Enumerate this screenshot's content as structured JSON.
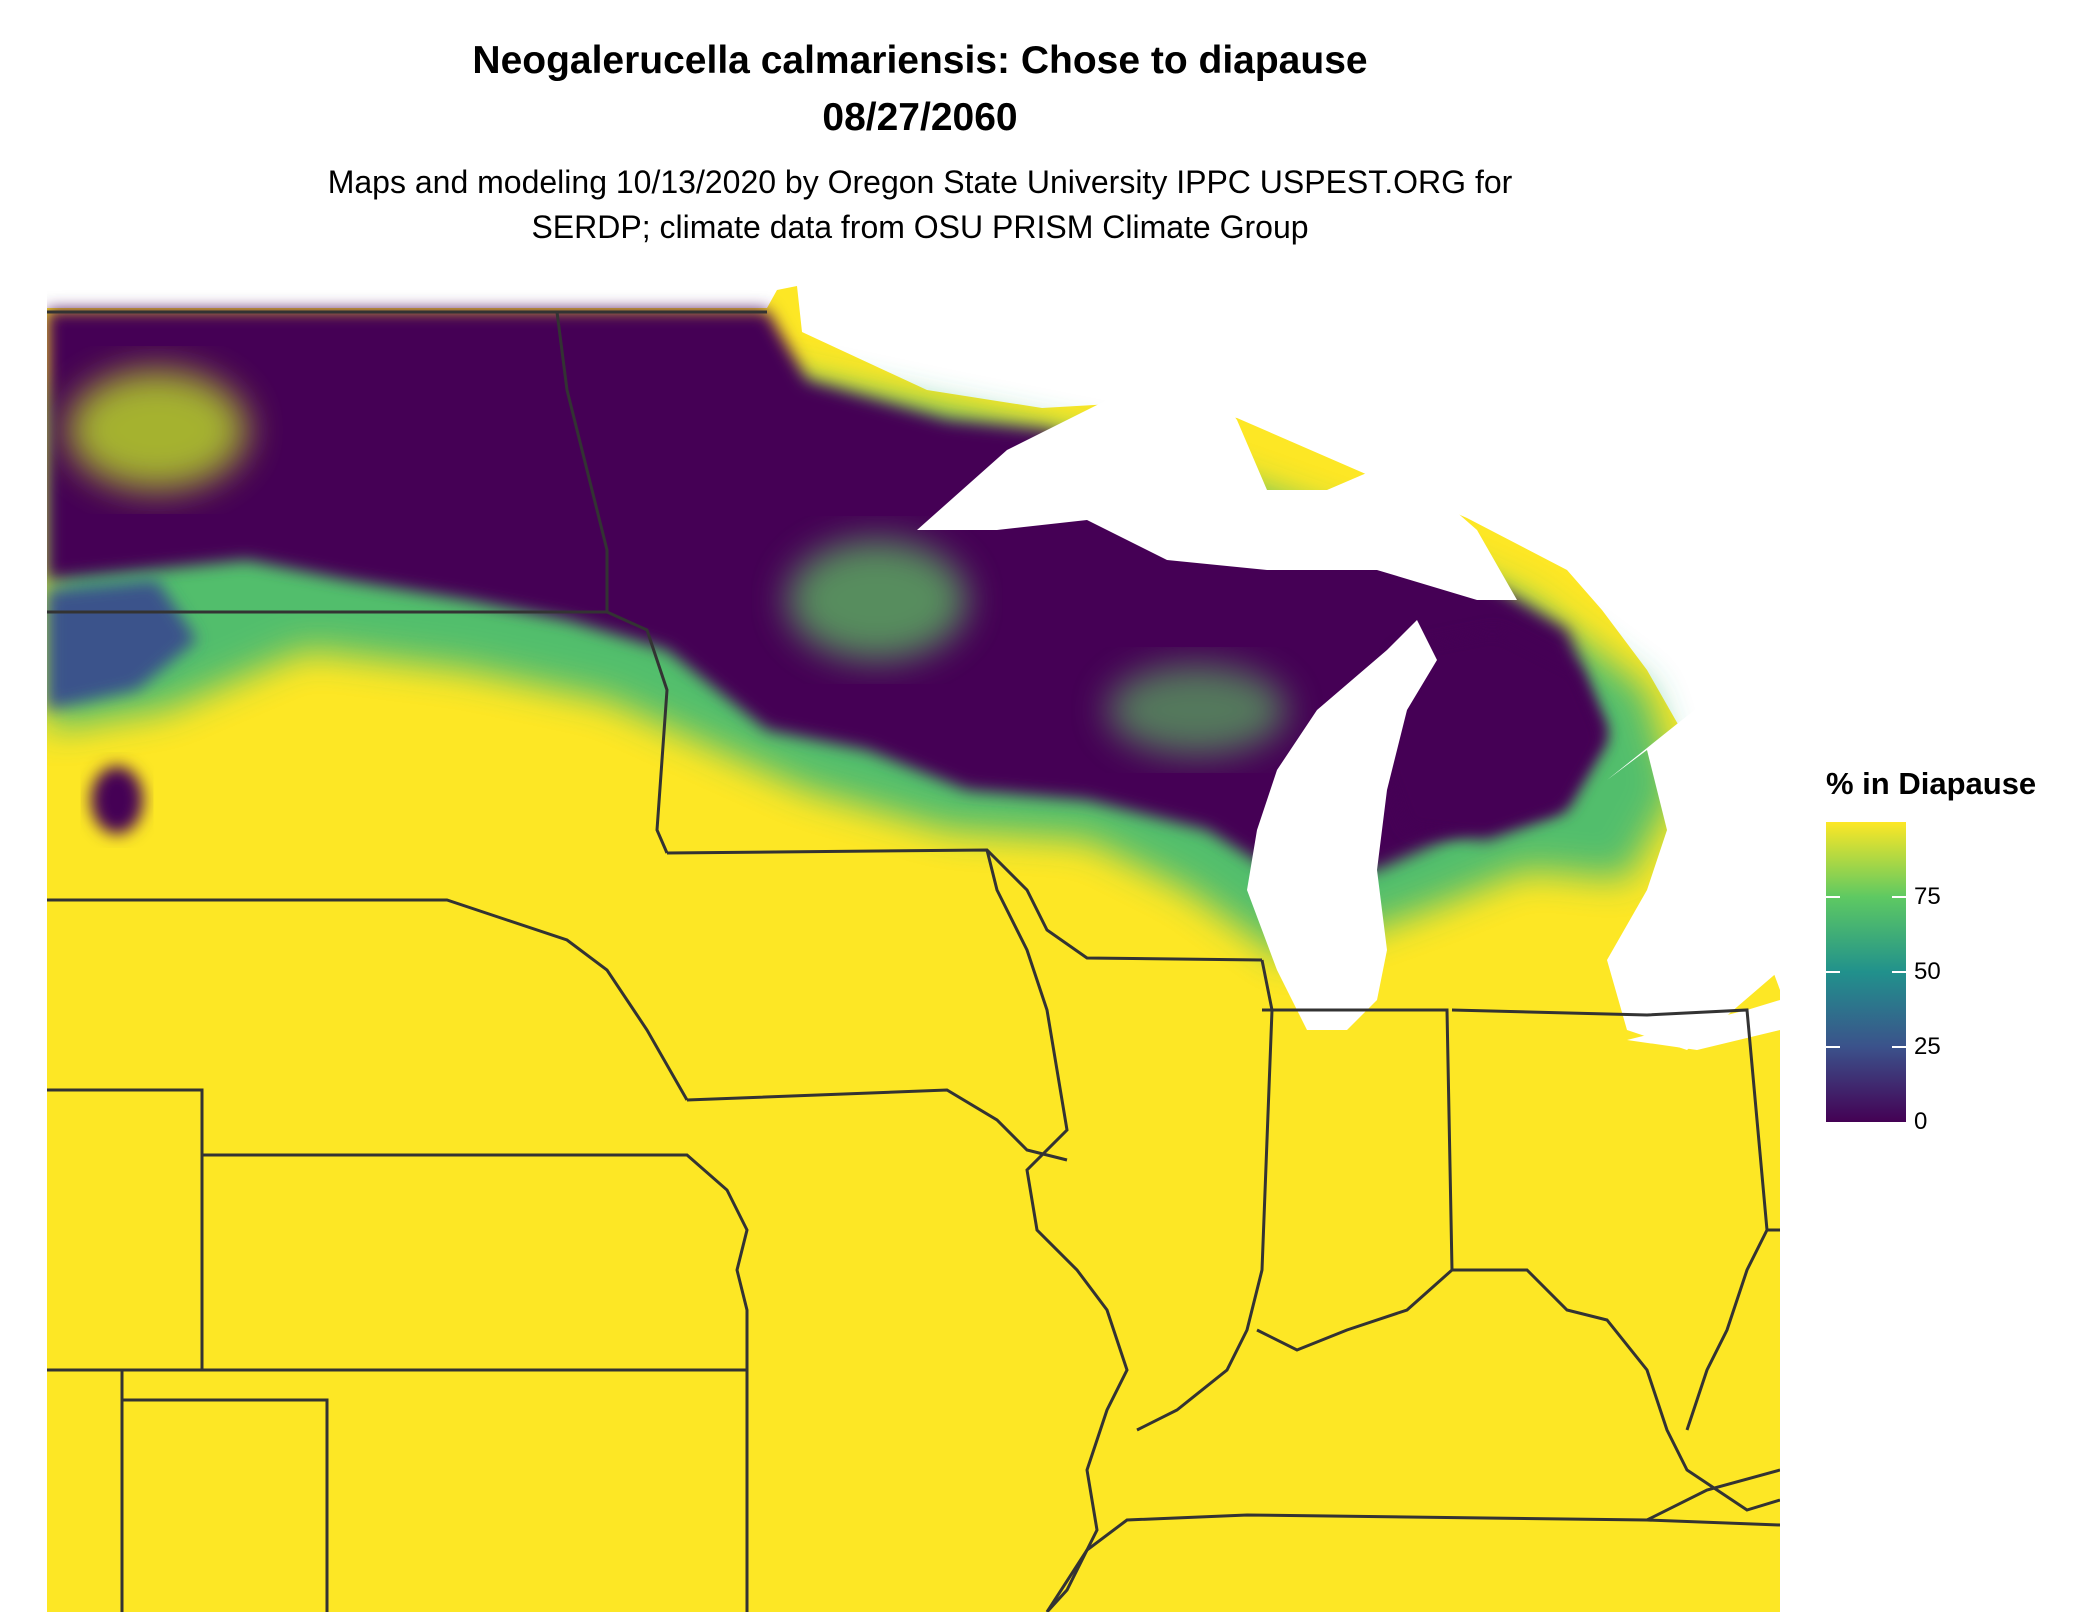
{
  "title": {
    "line1": "Neogalerucella calmariensis: Chose to diapause",
    "line2": "08/27/2060"
  },
  "subtitle": {
    "line1": "Maps and modeling 10/13/2020 by Oregon State University IPPC USPEST.ORG for",
    "line2": "SERDP; climate data from OSU PRISM Climate Group"
  },
  "legend": {
    "title": "% in Diapause",
    "ticks": [
      {
        "label": "75",
        "value": 75
      },
      {
        "label": "50",
        "value": 50
      },
      {
        "label": "25",
        "value": 25
      },
      {
        "label": "0",
        "value": 0
      }
    ],
    "range": [
      0,
      100
    ],
    "colors": [
      "#440154",
      "#3b528b",
      "#21918c",
      "#5ec962",
      "#fde725"
    ]
  },
  "map": {
    "region": "US Upper Midwest",
    "fill_dominant": "#fde725",
    "fill_low": "#440154",
    "lakes_color": "#ffffff",
    "border_color": "#333333"
  }
}
